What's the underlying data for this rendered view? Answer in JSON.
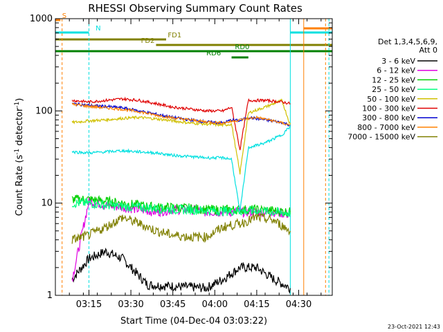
{
  "chart_data": {
    "type": "line",
    "title": "RHESSI Observing Summary Count Rates",
    "xlabel": "Start Time (04-Dec-04 03:03:22)",
    "ylabel_main": "Count Rate (s",
    "ylabel_exp1": "-1",
    "ylabel_mid": " detector",
    "ylabel_exp2": "-1",
    "ylabel_end": ")",
    "footer_date": "23-Oct-2021 12:43",
    "yscale": "log",
    "ylim": [
      1,
      1000
    ],
    "xlim_minutes": [
      3.05,
      4.7
    ],
    "x_ticks": [
      {
        "label": "03:15",
        "t": 3.25
      },
      {
        "label": "03:30",
        "t": 3.5
      },
      {
        "label": "03:45",
        "t": 3.75
      },
      {
        "label": "04:00",
        "t": 4.0
      },
      {
        "label": "04:15",
        "t": 4.25
      },
      {
        "label": "04:30",
        "t": 4.5
      }
    ],
    "y_ticks": [
      {
        "label": "1",
        "v": 1
      },
      {
        "label": "10",
        "v": 10
      },
      {
        "label": "100",
        "v": 100
      },
      {
        "label": "1000",
        "v": 1000
      }
    ],
    "legend_header": [
      "Det 1,3,4,5,6,9,",
      "Att 0"
    ],
    "series": [
      {
        "name": "3 - 6 keV",
        "color": "#000000",
        "x": [
          3.15,
          3.25,
          3.35,
          3.45,
          3.6,
          3.95,
          4.05,
          4.15,
          4.25,
          4.35,
          4.45
        ],
        "y": [
          1.5,
          2.5,
          3.0,
          2.5,
          1.3,
          1.2,
          1.5,
          2.0,
          2.0,
          1.5,
          1.2
        ]
      },
      {
        "name": "6 - 12 keV",
        "color": "#e000e0",
        "x": [
          3.15,
          3.25,
          3.35,
          3.45,
          3.55,
          3.65,
          3.75,
          3.85,
          3.95,
          4.05,
          4.15,
          4.25,
          4.35,
          4.45
        ],
        "y": [
          1.5,
          10.5,
          9.5,
          9.0,
          8.5,
          8.0,
          8.5,
          8.5,
          8.0,
          8.0,
          8.0,
          8.0,
          8.0,
          7.5
        ]
      },
      {
        "name": "12 - 25 keV",
        "color": "#00d000",
        "x": [
          3.15,
          3.25,
          3.35,
          3.45,
          3.55,
          3.65,
          3.75,
          3.85,
          3.95,
          4.05,
          4.15,
          4.25,
          4.35,
          4.45
        ],
        "y": [
          11,
          11,
          10.5,
          10,
          9.5,
          9.0,
          9.0,
          8.8,
          8.5,
          8.5,
          8.5,
          8.5,
          8.3,
          8.0
        ]
      },
      {
        "name": "25 - 50 keV",
        "color": "#00ff80",
        "x": [
          3.15,
          3.25,
          3.35,
          3.45,
          3.55,
          3.65,
          3.75,
          3.85,
          3.95,
          4.05,
          4.15,
          4.25,
          4.35,
          4.45
        ],
        "y": [
          10,
          10,
          9.5,
          9.2,
          9.0,
          8.8,
          8.5,
          8.5,
          8.3,
          8.2,
          8.2,
          8.2,
          8.0,
          7.8
        ]
      },
      {
        "name": "50 - 100 keV",
        "color": "#d0c000",
        "x": [
          3.15,
          3.25,
          3.35,
          3.45,
          3.55,
          3.65,
          3.75,
          3.85,
          3.95,
          4.05,
          4.1,
          4.15,
          4.2,
          4.3,
          4.4,
          4.45
        ],
        "y": [
          75,
          78,
          80,
          83,
          85,
          82,
          78,
          74,
          72,
          70,
          72,
          21,
          95,
          110,
          130,
          70
        ]
      },
      {
        "name": "100 - 300 keV",
        "color": "#e00000",
        "x": [
          3.15,
          3.25,
          3.35,
          3.45,
          3.55,
          3.65,
          3.75,
          3.85,
          3.95,
          4.05,
          4.1,
          4.15,
          4.2,
          4.3,
          4.4,
          4.45
        ],
        "y": [
          130,
          125,
          130,
          135,
          130,
          120,
          110,
          105,
          100,
          100,
          110,
          38,
          130,
          130,
          125,
          120
        ]
      },
      {
        "name": "300 - 800 keV",
        "color": "#0000d0",
        "x": [
          3.15,
          3.25,
          3.35,
          3.45,
          3.55,
          3.65,
          3.75,
          3.85,
          3.95,
          4.05,
          4.1,
          4.15,
          4.2,
          4.3,
          4.4,
          4.45
        ],
        "y": [
          120,
          115,
          112,
          108,
          100,
          92,
          85,
          80,
          76,
          74,
          80,
          78,
          85,
          80,
          75,
          70
        ]
      },
      {
        "name": "800 - 7000 keV",
        "color": "#ff8000",
        "x": [
          3.15,
          3.25,
          3.35,
          3.45,
          3.55,
          3.65,
          3.75,
          3.85,
          3.95,
          4.05,
          4.15,
          4.25,
          4.35,
          4.45
        ],
        "y": [
          118,
          112,
          108,
          104,
          98,
          90,
          84,
          80,
          76,
          74,
          80,
          85,
          78,
          70
        ]
      },
      {
        "name": "7000 - 15000 keV",
        "color": "#808000",
        "x": [
          3.15,
          3.25,
          3.35,
          3.45,
          3.55,
          3.65,
          3.75,
          3.85,
          3.95,
          4.05,
          4.15,
          4.25,
          4.35,
          4.45
        ],
        "y": [
          4.0,
          4.5,
          5.5,
          7.0,
          6.0,
          5.0,
          4.5,
          4.3,
          4.3,
          5.5,
          6.0,
          7.0,
          6.5,
          5.0
        ]
      },
      {
        "name": "",
        "color": "#00e0e0",
        "x": [
          3.15,
          3.25,
          3.35,
          3.45,
          3.55,
          3.65,
          3.75,
          3.85,
          3.95,
          4.05,
          4.1,
          4.15,
          4.2,
          4.3,
          4.4,
          4.45
        ],
        "y": [
          36,
          35,
          36,
          37,
          36,
          35,
          33,
          32,
          31,
          31,
          30,
          8,
          40,
          45,
          55,
          68
        ]
      }
    ],
    "flag_bars": [
      {
        "label": "S",
        "color": "#ff8000",
        "t0": 3.05,
        "t1": 3.08,
        "y": 29,
        "label_t": 3.09
      },
      {
        "label": "",
        "color": "#ff8000",
        "t0": 4.53,
        "t1": 4.7,
        "y": 41
      },
      {
        "label": "N",
        "color": "#00e0e0",
        "t0": 3.05,
        "t1": 3.25,
        "y": 47,
        "label_t": 3.29
      },
      {
        "label": "",
        "color": "#00e0e0",
        "t0": 4.45,
        "t1": 4.7,
        "y": 47
      },
      {
        "label": "FD1",
        "color": "#808000",
        "t0": 3.05,
        "t1": 3.71,
        "y": 57,
        "label_t": 3.72
      },
      {
        "label": "FD2",
        "color": "#808000",
        "t0": 3.65,
        "t1": 4.7,
        "y": 65,
        "label_t": 3.56
      },
      {
        "label": "RD0",
        "color": "#008000",
        "t0": 3.05,
        "t1": 4.7,
        "y": 74,
        "label_t": 4.12
      },
      {
        "label": "RD6",
        "color": "#008000",
        "t0": 4.1,
        "t1": 4.2,
        "y": 83,
        "label_t": 3.95
      }
    ],
    "vlines": [
      {
        "t": 3.09,
        "color": "#ff8000",
        "dashed": true
      },
      {
        "t": 3.25,
        "color": "#00e0e0",
        "dashed": true
      },
      {
        "t": 4.45,
        "color": "#00e0e0",
        "dashed": false
      },
      {
        "t": 4.53,
        "color": "#ff8000",
        "dashed": false
      },
      {
        "t": 4.66,
        "color": "#ff8000",
        "dashed": true
      },
      {
        "t": 4.68,
        "color": "#00e0e0",
        "dashed": true
      }
    ]
  }
}
